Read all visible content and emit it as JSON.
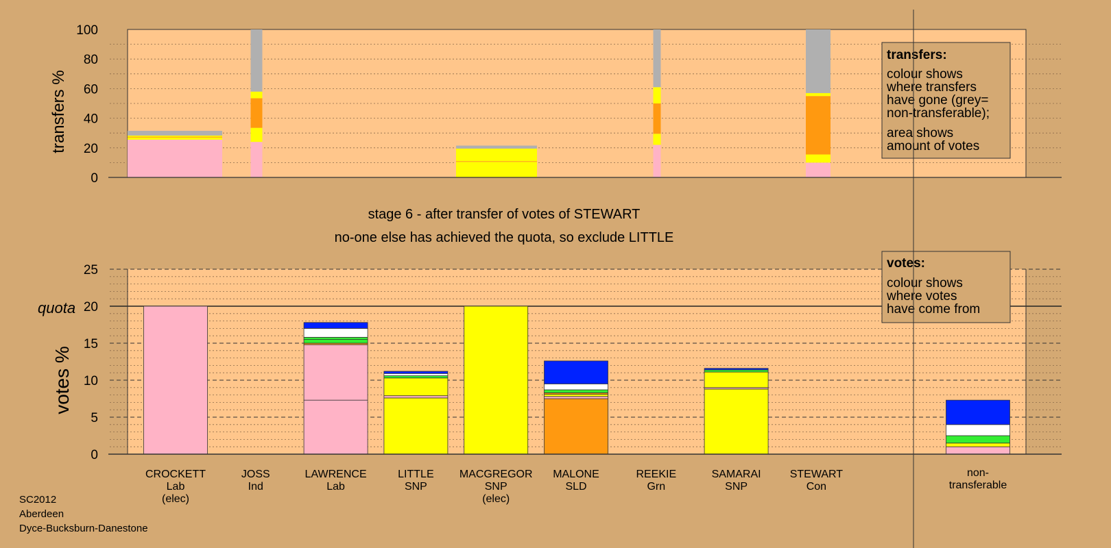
{
  "chart_data": {
    "type": "bar",
    "caption_line1": "stage 6 - after transfer of votes of STEWART",
    "caption_line2": "no-one else has achieved the quota, so exclude LITTLE",
    "footer": [
      "SC2012",
      "Aberdeen",
      "Dyce-Bucksburn-Danestone"
    ],
    "colors": {
      "Lab": "#ffb3c6",
      "SNP": "#ffff00",
      "SLD": "#ff9910",
      "Grn": "#33ee33",
      "Con": "#0022ff",
      "Ind": "#ffffff",
      "nontransferable": "#b0b0b0",
      "page_bg": "#d4a973",
      "plot_bg": "#ffc68b"
    },
    "candidates": [
      {
        "name": "CROCKETT",
        "party": "Lab",
        "status": "(elec)"
      },
      {
        "name": "JOSS",
        "party": "Ind",
        "status": ""
      },
      {
        "name": "LAWRENCE",
        "party": "Lab",
        "status": ""
      },
      {
        "name": "LITTLE",
        "party": "SNP",
        "status": ""
      },
      {
        "name": "MACGREGOR",
        "party": "SNP",
        "status": "(elec)"
      },
      {
        "name": "MALONE",
        "party": "SLD",
        "status": ""
      },
      {
        "name": "REEKIE",
        "party": "Grn",
        "status": ""
      },
      {
        "name": "SAMARAI",
        "party": "SNP",
        "status": ""
      },
      {
        "name": "STEWART",
        "party": "Con",
        "status": ""
      }
    ],
    "nontransferable_label": [
      "non-",
      "transferable"
    ],
    "transfers": {
      "ylabel": "transfers %",
      "ylim": [
        0,
        100
      ],
      "yticks": [
        0,
        20,
        40,
        60,
        80,
        100
      ],
      "legend_title": "transfers:",
      "legend_lines": [
        "colour shows",
        "where transfers",
        "have gone (grey=",
        "non-transferable);"
      ],
      "legend_lines2": [
        "area shows",
        "amount of votes"
      ],
      "bars": [
        {
          "candidate": "CROCKETT",
          "segments": [
            {
              "party": "Lab",
              "value": 25.5
            },
            {
              "party": "SNP",
              "value": 1.5
            },
            {
              "party": "SLD",
              "value": 0.5
            },
            {
              "party": "SNP",
              "value": 0.8
            },
            {
              "party": "nontransferable",
              "value": 3.2
            }
          ]
        },
        {
          "candidate": "JOSS",
          "segments": [
            {
              "party": "Lab",
              "value": 24
            },
            {
              "party": "SNP",
              "value": 9.5
            },
            {
              "party": "SLD",
              "value": 20
            },
            {
              "party": "SNP",
              "value": 4.5
            },
            {
              "party": "nontransferable",
              "value": 42
            }
          ]
        },
        {
          "candidate": "MACGREGOR",
          "segments": [
            {
              "party": "SNP",
              "value": 10.5
            },
            {
              "party": "SLD",
              "value": 0.5
            },
            {
              "party": "SNP",
              "value": 8.5
            },
            {
              "party": "nontransferable",
              "value": 2
            }
          ]
        },
        {
          "candidate": "REEKIE",
          "segments": [
            {
              "party": "Lab",
              "value": 22
            },
            {
              "party": "SNP",
              "value": 7.5
            },
            {
              "party": "SLD",
              "value": 20.5
            },
            {
              "party": "SNP",
              "value": 11
            },
            {
              "party": "nontransferable",
              "value": 39
            }
          ]
        },
        {
          "candidate": "STEWART",
          "segments": [
            {
              "party": "Lab",
              "value": 10
            },
            {
              "party": "SNP",
              "value": 5.5
            },
            {
              "party": "SLD",
              "value": 39.5
            },
            {
              "party": "SNP",
              "value": 2
            },
            {
              "party": "nontransferable",
              "value": 43
            }
          ]
        }
      ]
    },
    "votes": {
      "ylabel": "votes %",
      "ylim": [
        0,
        25
      ],
      "yticks": [
        0,
        5,
        10,
        15,
        20,
        25
      ],
      "quota": 20,
      "quota_label": "quota",
      "legend_title": "votes:",
      "legend_lines": [
        "colour shows",
        "where votes",
        "have come from"
      ],
      "bars": [
        {
          "candidate": "CROCKETT",
          "segments": [
            {
              "party": "Lab",
              "value": 20
            }
          ]
        },
        {
          "candidate": "JOSS",
          "segments": []
        },
        {
          "candidate": "LAWRENCE",
          "segments": [
            {
              "party": "Lab",
              "value": 7.3
            },
            {
              "party": "Lab",
              "value": 7.5
            },
            {
              "party": "SLD",
              "value": 0.2
            },
            {
              "party": "Grn",
              "value": 0.5
            },
            {
              "party": "Grn",
              "value": 0.3
            },
            {
              "party": "Ind",
              "value": 1.2
            },
            {
              "party": "Con",
              "value": 0.8
            }
          ]
        },
        {
          "candidate": "LITTLE",
          "segments": [
            {
              "party": "SNP",
              "value": 7.6
            },
            {
              "party": "Lab",
              "value": 0.3
            },
            {
              "party": "SNP",
              "value": 2.4
            },
            {
              "party": "Grn",
              "value": 0.3
            },
            {
              "party": "Ind",
              "value": 0.3
            },
            {
              "party": "Con",
              "value": 0.3
            }
          ]
        },
        {
          "candidate": "MACGREGOR",
          "segments": [
            {
              "party": "SNP",
              "value": 20
            }
          ]
        },
        {
          "candidate": "MALONE",
          "segments": [
            {
              "party": "SLD",
              "value": 7.5
            },
            {
              "party": "Lab",
              "value": 0.3
            },
            {
              "party": "SNP",
              "value": 0.3
            },
            {
              "party": "SLD",
              "value": 0.2
            },
            {
              "party": "Grn",
              "value": 0.4
            },
            {
              "party": "Ind",
              "value": 0.8
            },
            {
              "party": "Con",
              "value": 3.1
            }
          ]
        },
        {
          "candidate": "REEKIE",
          "segments": []
        },
        {
          "candidate": "SAMARAI",
          "segments": [
            {
              "party": "SNP",
              "value": 8.8
            },
            {
              "party": "Lab",
              "value": 0.2
            },
            {
              "party": "SNP",
              "value": 2.1
            },
            {
              "party": "Grn",
              "value": 0.3
            },
            {
              "party": "Con",
              "value": 0.2
            }
          ]
        },
        {
          "candidate": "STEWART",
          "segments": []
        },
        {
          "candidate": "non-transferable",
          "segments": [
            {
              "party": "Lab",
              "value": 1
            },
            {
              "party": "SNP",
              "value": 0.5
            },
            {
              "party": "Grn",
              "value": 1
            },
            {
              "party": "Ind",
              "value": 1.5
            },
            {
              "party": "Con",
              "value": 3.3
            }
          ]
        }
      ]
    }
  }
}
